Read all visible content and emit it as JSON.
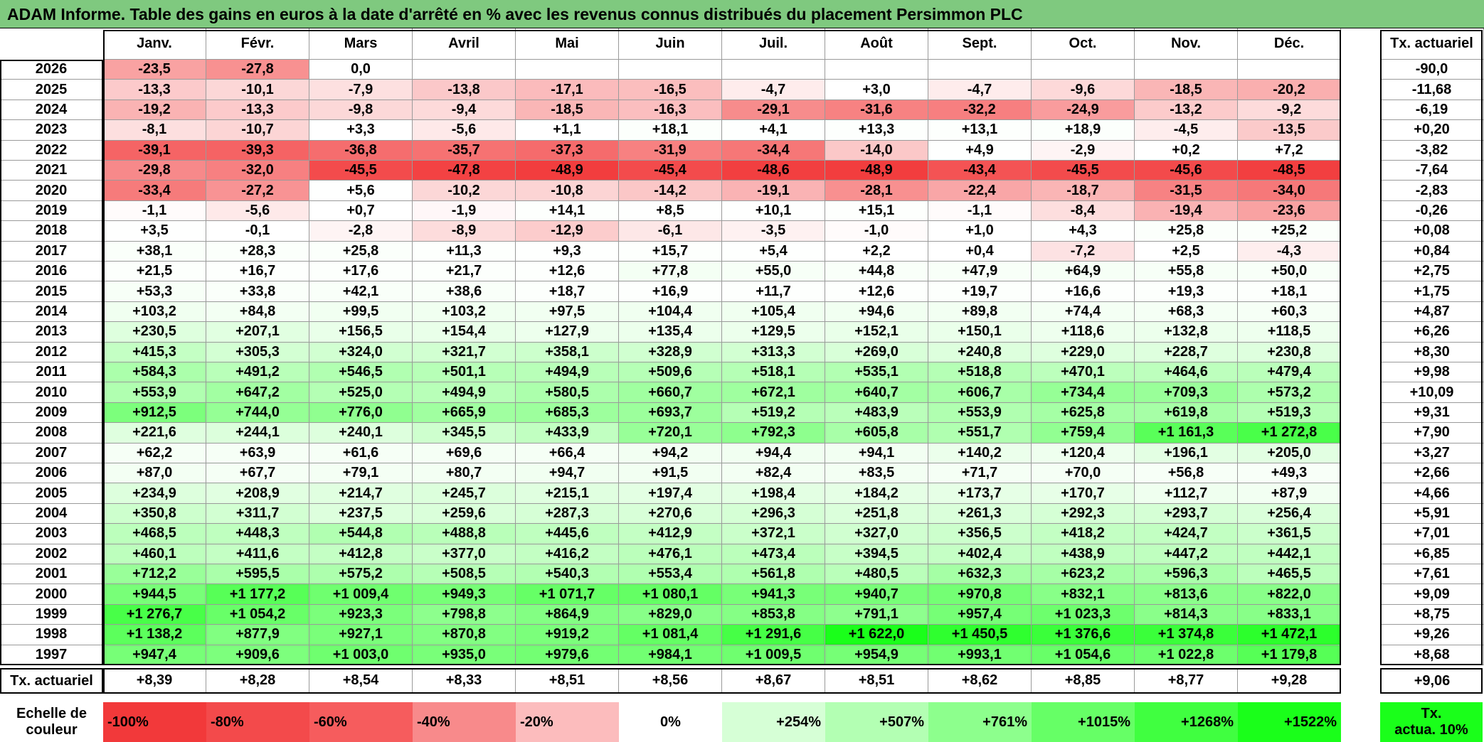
{
  "title": "ADAM Informe. Table des gains en euros à la date d'arrêté en % avec les revenus connus distribués du placement Persimmon PLC",
  "chart_data": {
    "type": "heatmap",
    "title": "ADAM Informe. Table des gains en euros à la date d'arrêté en % avec les revenus connus distribués du placement Persimmon PLC",
    "columns": [
      "Janv.",
      "Févr.",
      "Mars",
      "Avril",
      "Mai",
      "Juin",
      "Juil.",
      "Août",
      "Sept.",
      "Oct.",
      "Nov.",
      "Déc."
    ],
    "rate_header": "Tx. actuariel",
    "rows": [
      {
        "year": "2026",
        "values": [
          "-23,5",
          "-27,8",
          "0,0",
          "",
          "",
          "",
          "",
          "",
          "",
          "",
          "",
          ""
        ],
        "rate": "-90,0"
      },
      {
        "year": "2025",
        "values": [
          "-13,3",
          "-10,1",
          "-7,9",
          "-13,8",
          "-17,1",
          "-16,5",
          "-4,7",
          "+3,0",
          "-4,7",
          "-9,6",
          "-18,5",
          "-20,2"
        ],
        "rate": "-11,68"
      },
      {
        "year": "2024",
        "values": [
          "-19,2",
          "-13,3",
          "-9,8",
          "-9,4",
          "-18,5",
          "-16,3",
          "-29,1",
          "-31,6",
          "-32,2",
          "-24,9",
          "-13,2",
          "-9,2"
        ],
        "rate": "-6,19"
      },
      {
        "year": "2023",
        "values": [
          "-8,1",
          "-10,7",
          "+3,3",
          "-5,6",
          "+1,1",
          "+18,1",
          "+4,1",
          "+13,3",
          "+13,1",
          "+18,9",
          "-4,5",
          "-13,5"
        ],
        "rate": "+0,20"
      },
      {
        "year": "2022",
        "values": [
          "-39,1",
          "-39,3",
          "-36,8",
          "-35,7",
          "-37,3",
          "-31,9",
          "-34,4",
          "-14,0",
          "+4,9",
          "-2,9",
          "+0,2",
          "+7,2"
        ],
        "rate": "-3,82"
      },
      {
        "year": "2021",
        "values": [
          "-29,8",
          "-32,0",
          "-45,5",
          "-47,8",
          "-48,9",
          "-45,4",
          "-48,6",
          "-48,9",
          "-43,4",
          "-45,5",
          "-45,6",
          "-48,5"
        ],
        "rate": "-7,64"
      },
      {
        "year": "2020",
        "values": [
          "-33,4",
          "-27,2",
          "+5,6",
          "-10,2",
          "-10,8",
          "-14,2",
          "-19,1",
          "-28,1",
          "-22,4",
          "-18,7",
          "-31,5",
          "-34,0"
        ],
        "rate": "-2,83"
      },
      {
        "year": "2019",
        "values": [
          "-1,1",
          "-5,6",
          "+0,7",
          "-1,9",
          "+14,1",
          "+8,5",
          "+10,1",
          "+15,1",
          "-1,1",
          "-8,4",
          "-19,4",
          "-23,6"
        ],
        "rate": "-0,26"
      },
      {
        "year": "2018",
        "values": [
          "+3,5",
          "-0,1",
          "-2,8",
          "-8,9",
          "-12,9",
          "-6,1",
          "-3,5",
          "-1,0",
          "+1,0",
          "+4,3",
          "+25,8",
          "+25,2"
        ],
        "rate": "+0,08"
      },
      {
        "year": "2017",
        "values": [
          "+38,1",
          "+28,3",
          "+25,8",
          "+11,3",
          "+9,3",
          "+15,7",
          "+5,4",
          "+2,2",
          "+0,4",
          "-7,2",
          "+2,5",
          "-4,3"
        ],
        "rate": "+0,84"
      },
      {
        "year": "2016",
        "values": [
          "+21,5",
          "+16,7",
          "+17,6",
          "+21,7",
          "+12,6",
          "+77,8",
          "+55,0",
          "+44,8",
          "+47,9",
          "+64,9",
          "+55,8",
          "+50,0"
        ],
        "rate": "+2,75"
      },
      {
        "year": "2015",
        "values": [
          "+53,3",
          "+33,8",
          "+42,1",
          "+38,6",
          "+18,7",
          "+16,9",
          "+11,7",
          "+12,6",
          "+19,7",
          "+16,6",
          "+19,3",
          "+18,1"
        ],
        "rate": "+1,75"
      },
      {
        "year": "2014",
        "values": [
          "+103,2",
          "+84,8",
          "+99,5",
          "+103,2",
          "+97,5",
          "+104,4",
          "+105,4",
          "+94,6",
          "+89,8",
          "+74,4",
          "+68,3",
          "+60,3"
        ],
        "rate": "+4,87"
      },
      {
        "year": "2013",
        "values": [
          "+230,5",
          "+207,1",
          "+156,5",
          "+154,4",
          "+127,9",
          "+135,4",
          "+129,5",
          "+152,1",
          "+150,1",
          "+118,6",
          "+132,8",
          "+118,5"
        ],
        "rate": "+6,26"
      },
      {
        "year": "2012",
        "values": [
          "+415,3",
          "+305,3",
          "+324,0",
          "+321,7",
          "+358,1",
          "+328,9",
          "+313,3",
          "+269,0",
          "+240,8",
          "+229,0",
          "+228,7",
          "+230,8"
        ],
        "rate": "+8,30"
      },
      {
        "year": "2011",
        "values": [
          "+584,3",
          "+491,2",
          "+546,5",
          "+501,1",
          "+494,9",
          "+509,6",
          "+518,1",
          "+535,1",
          "+518,8",
          "+470,1",
          "+464,6",
          "+479,4"
        ],
        "rate": "+9,98"
      },
      {
        "year": "2010",
        "values": [
          "+553,9",
          "+647,2",
          "+525,0",
          "+494,9",
          "+580,5",
          "+660,7",
          "+672,1",
          "+640,7",
          "+606,7",
          "+734,4",
          "+709,3",
          "+573,2"
        ],
        "rate": "+10,09"
      },
      {
        "year": "2009",
        "values": [
          "+912,5",
          "+744,0",
          "+776,0",
          "+665,9",
          "+685,3",
          "+693,7",
          "+519,2",
          "+483,9",
          "+553,9",
          "+625,8",
          "+619,8",
          "+519,3"
        ],
        "rate": "+9,31"
      },
      {
        "year": "2008",
        "values": [
          "+221,6",
          "+244,1",
          "+240,1",
          "+345,5",
          "+433,9",
          "+720,1",
          "+792,3",
          "+605,8",
          "+551,7",
          "+759,4",
          "+1 161,3",
          "+1 272,8"
        ],
        "rate": "+7,90"
      },
      {
        "year": "2007",
        "values": [
          "+62,2",
          "+63,9",
          "+61,6",
          "+69,6",
          "+66,4",
          "+94,2",
          "+94,4",
          "+94,1",
          "+140,2",
          "+120,4",
          "+196,1",
          "+205,0"
        ],
        "rate": "+3,27"
      },
      {
        "year": "2006",
        "values": [
          "+87,0",
          "+67,7",
          "+79,1",
          "+80,7",
          "+94,7",
          "+91,5",
          "+82,4",
          "+83,5",
          "+71,7",
          "+70,0",
          "+56,8",
          "+49,3"
        ],
        "rate": "+2,66"
      },
      {
        "year": "2005",
        "values": [
          "+234,9",
          "+208,9",
          "+214,7",
          "+245,7",
          "+215,1",
          "+197,4",
          "+198,4",
          "+184,2",
          "+173,7",
          "+170,7",
          "+112,7",
          "+87,9"
        ],
        "rate": "+4,66"
      },
      {
        "year": "2004",
        "values": [
          "+350,8",
          "+311,7",
          "+237,5",
          "+259,6",
          "+287,3",
          "+270,6",
          "+296,3",
          "+251,8",
          "+261,3",
          "+292,3",
          "+293,7",
          "+256,4"
        ],
        "rate": "+5,91"
      },
      {
        "year": "2003",
        "values": [
          "+468,5",
          "+448,3",
          "+544,8",
          "+488,8",
          "+445,6",
          "+412,9",
          "+372,1",
          "+327,0",
          "+356,5",
          "+418,2",
          "+424,7",
          "+361,5"
        ],
        "rate": "+7,01"
      },
      {
        "year": "2002",
        "values": [
          "+460,1",
          "+411,6",
          "+412,8",
          "+377,0",
          "+416,2",
          "+476,1",
          "+473,4",
          "+394,5",
          "+402,4",
          "+438,9",
          "+447,2",
          "+442,1"
        ],
        "rate": "+6,85"
      },
      {
        "year": "2001",
        "values": [
          "+712,2",
          "+595,5",
          "+575,2",
          "+508,5",
          "+540,3",
          "+553,4",
          "+561,8",
          "+480,5",
          "+632,3",
          "+623,2",
          "+596,3",
          "+465,5"
        ],
        "rate": "+7,61"
      },
      {
        "year": "2000",
        "values": [
          "+944,5",
          "+1 177,2",
          "+1 009,4",
          "+949,3",
          "+1 071,7",
          "+1 080,1",
          "+941,3",
          "+940,7",
          "+970,8",
          "+832,1",
          "+813,6",
          "+822,0"
        ],
        "rate": "+9,09"
      },
      {
        "year": "1999",
        "values": [
          "+1 276,7",
          "+1 054,2",
          "+923,3",
          "+798,8",
          "+864,9",
          "+829,0",
          "+853,8",
          "+791,1",
          "+957,4",
          "+1 023,3",
          "+814,3",
          "+833,1"
        ],
        "rate": "+8,75"
      },
      {
        "year": "1998",
        "values": [
          "+1 138,2",
          "+877,9",
          "+927,1",
          "+870,8",
          "+919,2",
          "+1 081,4",
          "+1 291,6",
          "+1 622,0",
          "+1 450,5",
          "+1 376,6",
          "+1 374,8",
          "+1 472,1"
        ],
        "rate": "+9,26"
      },
      {
        "year": "1997",
        "values": [
          "+947,4",
          "+909,6",
          "+1 003,0",
          "+935,0",
          "+979,6",
          "+984,1",
          "+1 009,5",
          "+954,9",
          "+993,1",
          "+1 054,6",
          "+1 022,8",
          "+1 179,8"
        ],
        "rate": "+8,68"
      }
    ],
    "footer": {
      "label": "Tx. actuariel",
      "values": [
        "+8,39",
        "+8,28",
        "+8,54",
        "+8,33",
        "+8,51",
        "+8,56",
        "+8,67",
        "+8,51",
        "+8,62",
        "+8,85",
        "+8,77",
        "+9,28"
      ],
      "total": "+9,06"
    },
    "scale": {
      "label_line1": "Echelle de",
      "label_line2": "couleur",
      "steps": [
        {
          "label": "-100%",
          "color": "#f2393a"
        },
        {
          "label": "-80%",
          "color": "#f34a4b"
        },
        {
          "label": "-60%",
          "color": "#f65c5d"
        },
        {
          "label": "-40%",
          "color": "#f88a8b"
        },
        {
          "label": "-20%",
          "color": "#fcbcbd"
        },
        {
          "label": "0%",
          "color": "#ffffff"
        },
        {
          "label": "+254%",
          "color": "#d6ffd6"
        },
        {
          "label": "+507%",
          "color": "#b3ffb3"
        },
        {
          "label": "+761%",
          "color": "#8dff8d"
        },
        {
          "label": "+1015%",
          "color": "#66ff66"
        },
        {
          "label": "+1268%",
          "color": "#40ff40"
        },
        {
          "label": "+1522%",
          "color": "#1aff1a"
        }
      ],
      "rate_label_line1": "Tx.",
      "rate_label_line2": "actua. 10%",
      "rate_color": "#1aff1a"
    },
    "colors": {
      "title_background": "#7fc97f",
      "negative_max": "#f2393a",
      "positive_max": "#1aff1a"
    }
  }
}
